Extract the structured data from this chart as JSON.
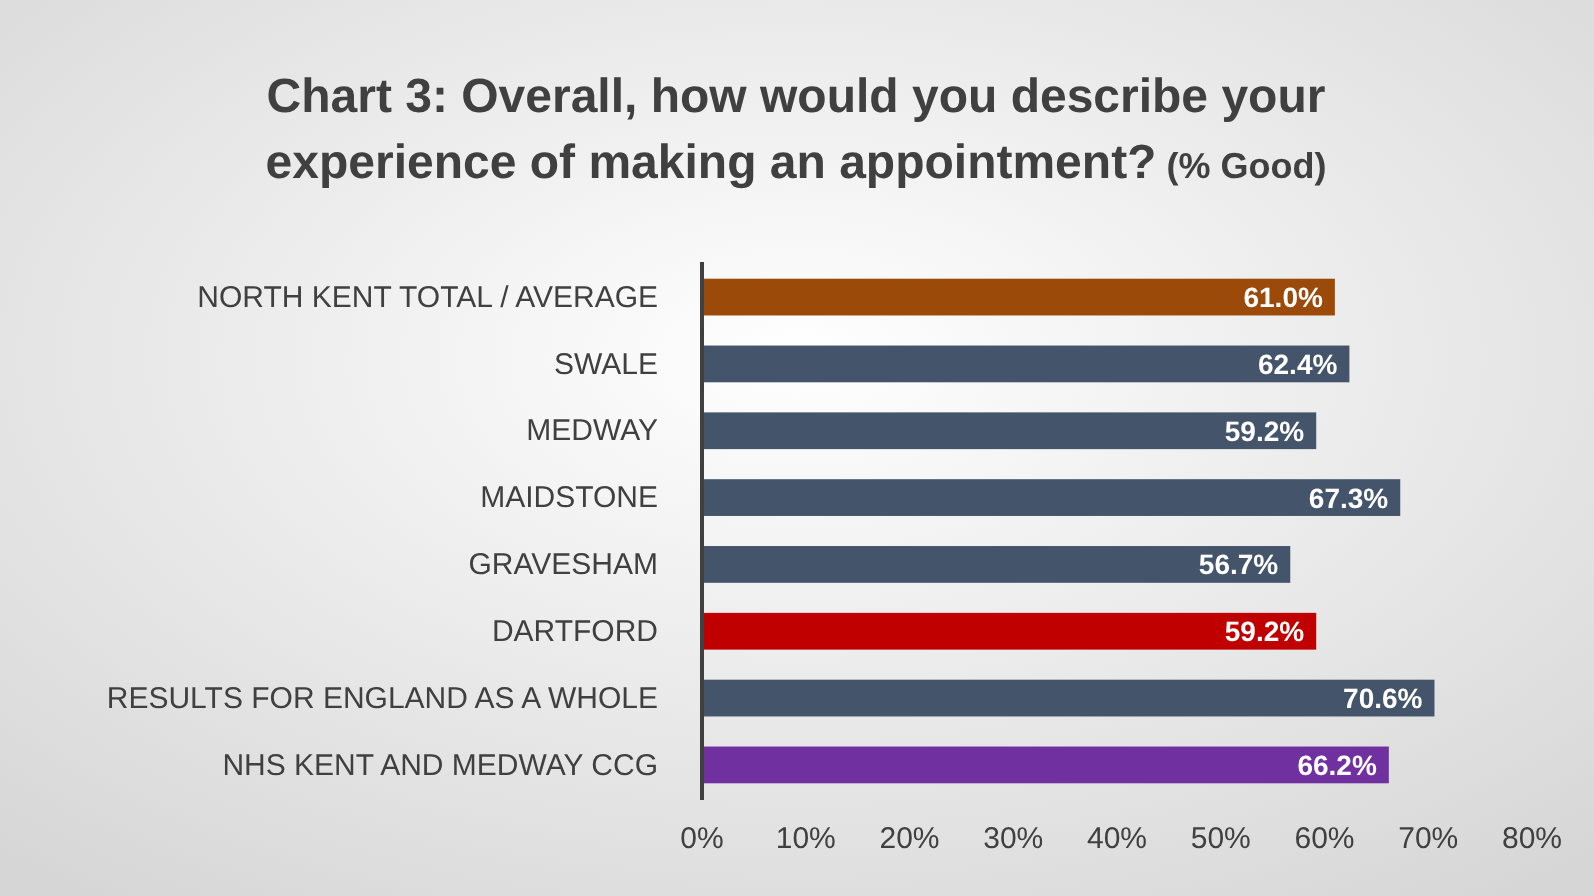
{
  "chart_data": {
    "type": "bar",
    "orientation": "horizontal",
    "title": "Chart 3: Overall, how would you describe your experience of making an appointment?",
    "subtitle": "(% Good)",
    "categories": [
      "NORTH KENT TOTAL / AVERAGE",
      "SWALE",
      "MEDWAY",
      "MAIDSTONE",
      "GRAVESHAM",
      "DARTFORD",
      "RESULTS FOR ENGLAND AS A WHOLE",
      "NHS KENT AND MEDWAY CCG"
    ],
    "values": [
      61.0,
      62.4,
      59.2,
      67.3,
      56.7,
      59.2,
      70.6,
      66.2
    ],
    "colors": [
      "#9c4a0a",
      "#44546a",
      "#44546a",
      "#44546a",
      "#44546a",
      "#c00000",
      "#44546a",
      "#7030a0"
    ],
    "value_labels": [
      "61.0%",
      "62.4%",
      "59.2%",
      "67.3%",
      "56.7%",
      "59.2%",
      "70.6%",
      "66.2%"
    ],
    "xlim": [
      0,
      80
    ],
    "xticks": [
      {
        "value": 0,
        "label": "0%"
      },
      {
        "value": 10,
        "label": "10%"
      },
      {
        "value": 20,
        "label": "20%"
      },
      {
        "value": 30,
        "label": "30%"
      },
      {
        "value": 40,
        "label": "40%"
      },
      {
        "value": 50,
        "label": "50%"
      },
      {
        "value": 60,
        "label": "60%"
      },
      {
        "value": 70,
        "label": "70%"
      },
      {
        "value": 80,
        "label": "80%"
      }
    ],
    "grid": false
  }
}
